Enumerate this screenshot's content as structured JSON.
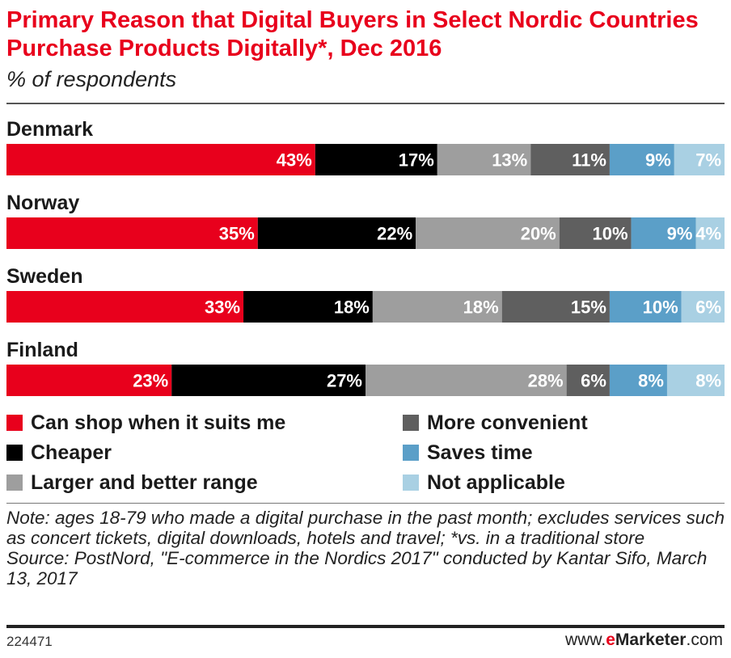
{
  "header": {
    "title": "Primary Reason that Digital Buyers in Select Nordic Countries Purchase Products Digitally*, Dec 2016",
    "subtitle": "% of respondents"
  },
  "chart_data": {
    "type": "bar",
    "orientation": "horizontal",
    "stacked": true,
    "categories": [
      "Denmark",
      "Norway",
      "Sweden",
      "Finland"
    ],
    "value_suffix": "%",
    "series": [
      {
        "name": "Can shop when it suits me",
        "color": "#e8001c",
        "label_color": "#ffffff",
        "values": [
          43,
          35,
          33,
          23
        ]
      },
      {
        "name": "Cheaper",
        "color": "#000000",
        "label_color": "#ffffff",
        "values": [
          17,
          22,
          18,
          27
        ]
      },
      {
        "name": "Larger and better range",
        "color": "#9e9e9e",
        "label_color": "#ffffff",
        "values": [
          13,
          20,
          18,
          28
        ]
      },
      {
        "name": "More convenient",
        "color": "#5f5f5f",
        "label_color": "#ffffff",
        "values": [
          11,
          10,
          15,
          6
        ]
      },
      {
        "name": "Saves time",
        "color": "#5b9fc8",
        "label_color": "#ffffff",
        "values": [
          9,
          9,
          10,
          8
        ]
      },
      {
        "name": "Not applicable",
        "color": "#a9d0e3",
        "label_color": "#ffffff",
        "values": [
          7,
          4,
          6,
          8
        ]
      }
    ],
    "legend_position": "bottom",
    "grid": false
  },
  "legend": {
    "items": [
      {
        "label": "Can shop when it suits me",
        "color": "#e8001c"
      },
      {
        "label": "Cheaper",
        "color": "#000000"
      },
      {
        "label": "Larger and better range",
        "color": "#9e9e9e"
      },
      {
        "label": "More convenient",
        "color": "#5f5f5f"
      },
      {
        "label": "Saves time",
        "color": "#5b9fc8"
      },
      {
        "label": "Not applicable",
        "color": "#a9d0e3"
      }
    ]
  },
  "notes": {
    "note": "Note: ages 18-79 who made a digital purchase in the past month; excludes services such as concert tickets, digital downloads, hotels and travel; *vs. in a traditional store",
    "source": "Source: PostNord, \"E-commerce in the Nordics 2017\" conducted by Kantar Sifo, March 13, 2017"
  },
  "footer": {
    "chart_id": "224471",
    "brand_prefix": "www.",
    "brand_e": "e",
    "brand_main": "Marketer",
    "brand_suffix": ".com"
  }
}
